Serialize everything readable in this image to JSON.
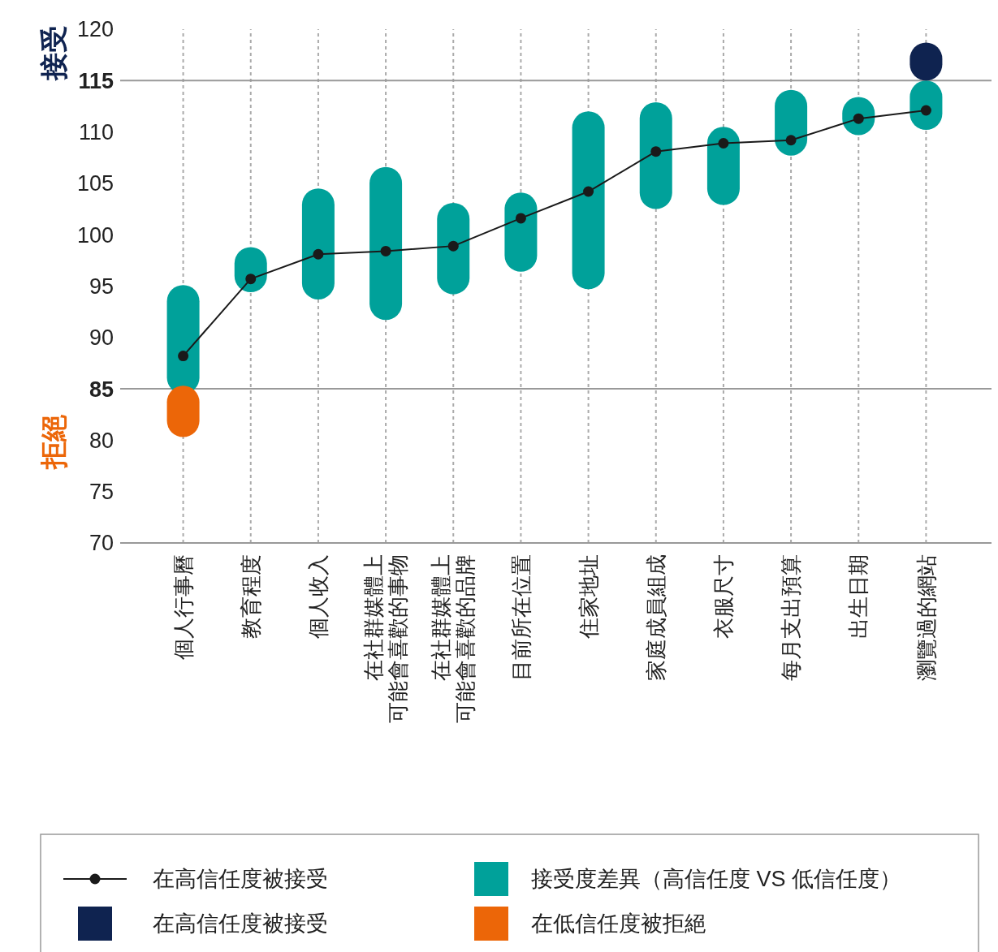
{
  "chart_data": {
    "type": "bar",
    "categories": [
      "個人行事曆",
      "教育程度",
      "個人收入",
      "在社群媒體上可能會喜歡的事物",
      "在社群媒體上可能會喜歡的品牌",
      "目前所在位置",
      "住家地址",
      "家庭成員組成",
      "衣服尺寸",
      "每月支出預算",
      "出生日期",
      "瀏覽過的網站"
    ],
    "series": [
      {
        "name": "在高信任度被接受",
        "type": "line",
        "color": "#1a1a1a",
        "values": [
          88.2,
          95.7,
          98.1,
          98.4,
          98.9,
          101.6,
          104.2,
          108.1,
          108.9,
          109.2,
          111.3,
          112.1
        ]
      },
      {
        "name": "接受度差異（高信任度 VS 低信任度）",
        "color": "#00a19a",
        "base": [
          84.5,
          94.4,
          93.7,
          91.7,
          94.2,
          96.4,
          94.7,
          102.5,
          102.9,
          107.7,
          109.7,
          110.2
        ],
        "values": [
          10.6,
          4.4,
          10.8,
          14.9,
          8.9,
          7.7,
          17.3,
          10.4,
          7.6,
          6.4,
          3.7,
          4.8
        ]
      },
      {
        "name": "在高信任度被接受",
        "color": "#0f2350",
        "base": [
          null,
          null,
          null,
          null,
          null,
          null,
          null,
          null,
          null,
          null,
          null,
          115
        ],
        "values": [
          null,
          null,
          null,
          null,
          null,
          null,
          null,
          null,
          null,
          null,
          null,
          3.7
        ]
      },
      {
        "name": "在低信任度被拒絕",
        "color": "#ec6608",
        "base": [
          80.3,
          null,
          null,
          null,
          null,
          null,
          null,
          null,
          null,
          null,
          null,
          null
        ],
        "values": [
          5.0,
          null,
          null,
          null,
          null,
          null,
          null,
          null,
          null,
          null,
          null,
          null
        ]
      }
    ],
    "ylim": [
      70,
      120
    ],
    "yticks": [
      70,
      75,
      80,
      85,
      90,
      95,
      100,
      105,
      110,
      115,
      120
    ],
    "ref_lines": [
      {
        "axis": "y",
        "value": 115,
        "label": "接受",
        "color": "#999999"
      },
      {
        "axis": "y",
        "value": 85,
        "label": "拒絕",
        "color": "#999999"
      }
    ],
    "grid": "x",
    "marker": "circle",
    "legend": "bottom"
  }
}
